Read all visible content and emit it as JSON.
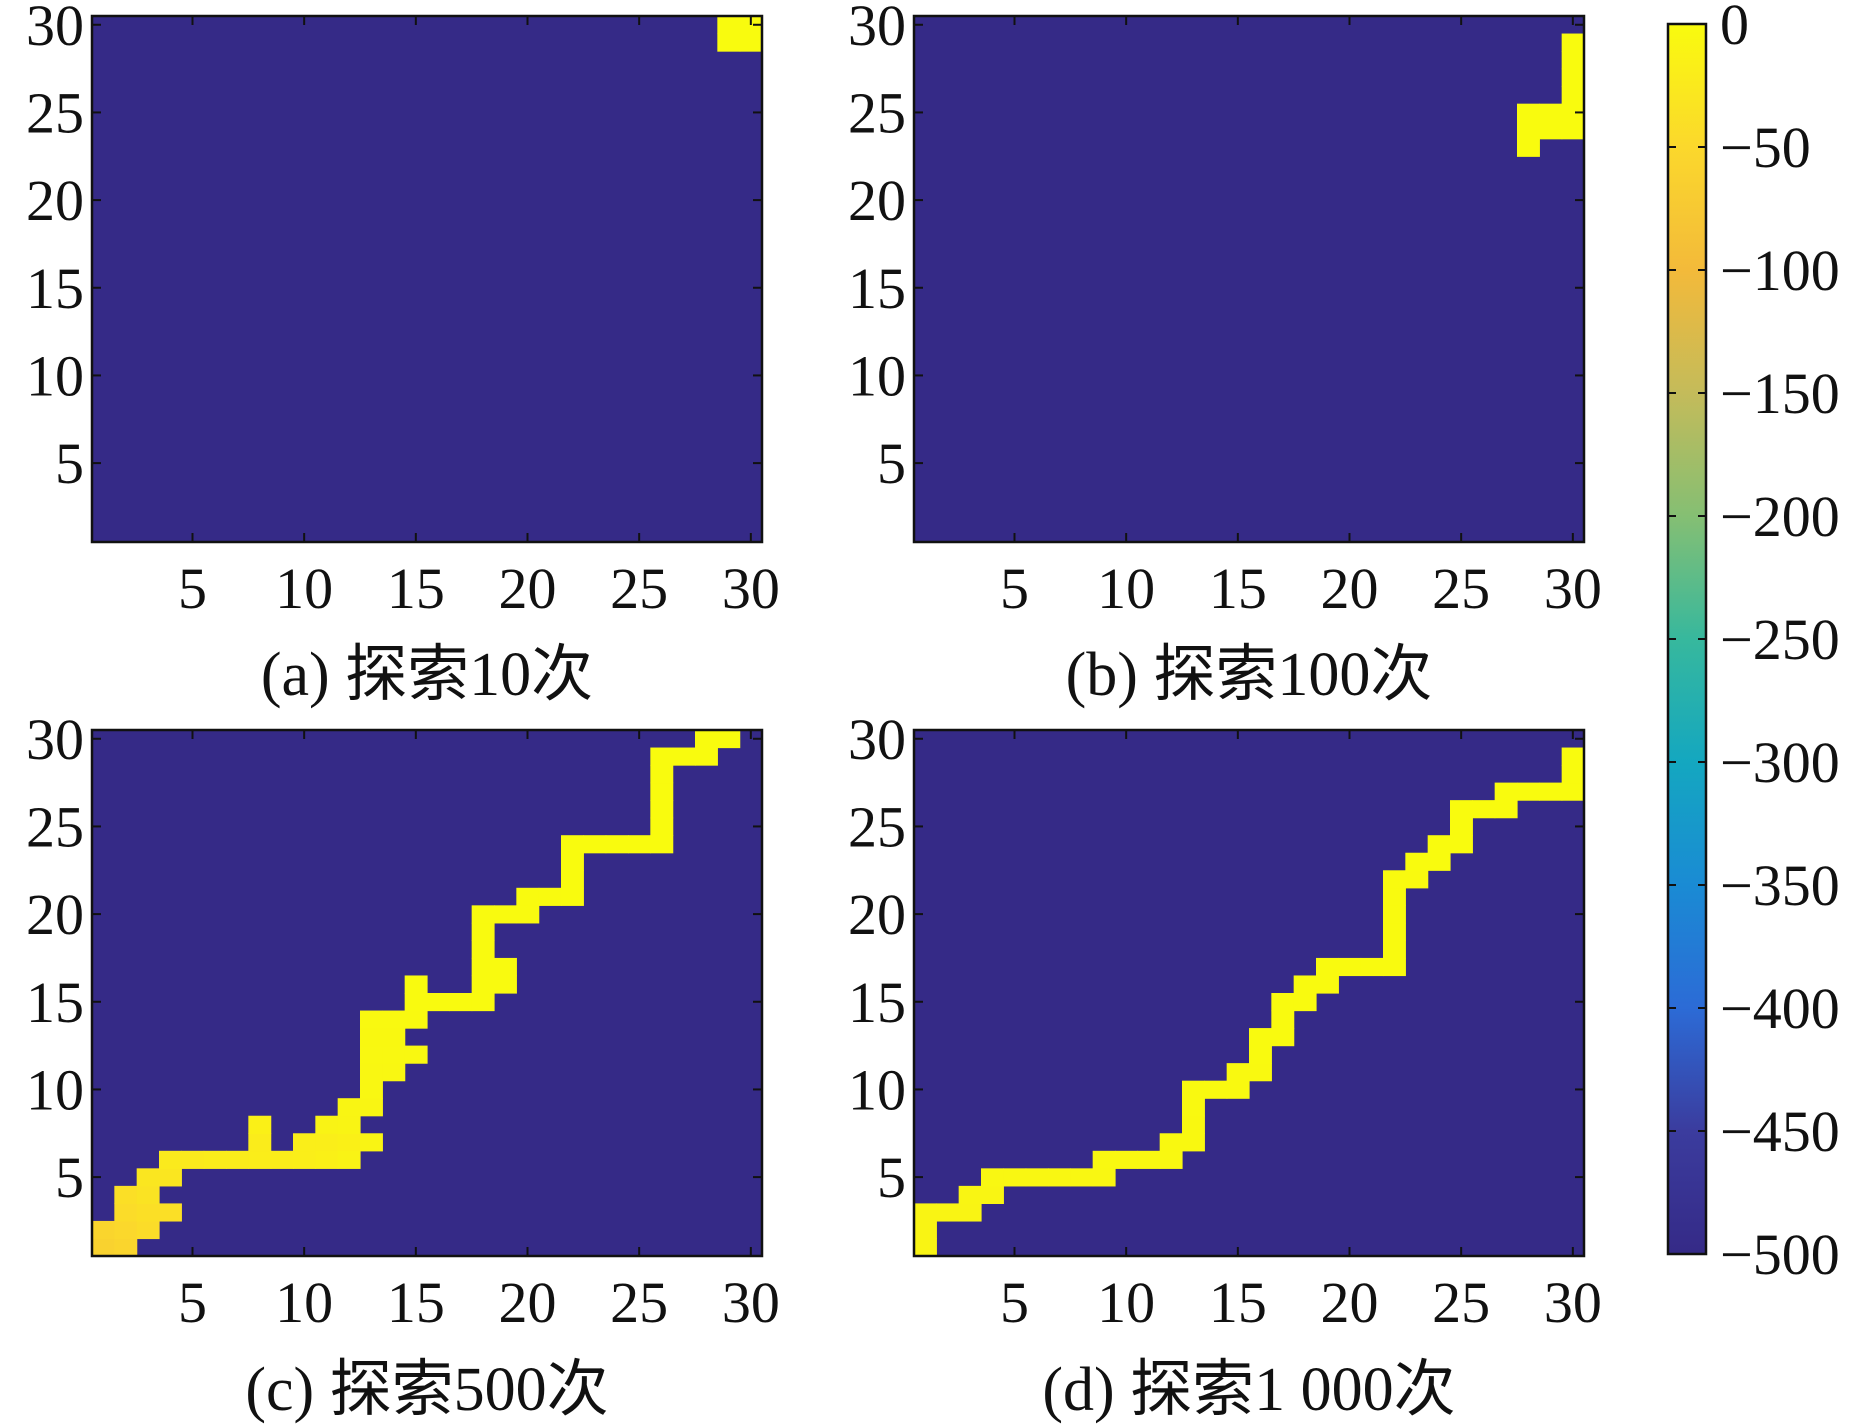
{
  "chart_data": [
    {
      "type": "heatmap",
      "caption": "(a) 探索10次",
      "xlim": [
        0.5,
        30.5
      ],
      "ylim": [
        0.5,
        30.5
      ],
      "x_ticks": [
        5,
        10,
        15,
        20,
        25,
        30
      ],
      "y_ticks": [
        5,
        10,
        15,
        20,
        25,
        30
      ],
      "background_value": -500,
      "cells": [
        {
          "x": 29,
          "y": 30,
          "v": 0
        },
        {
          "x": 30,
          "y": 30,
          "v": 0
        },
        {
          "x": 29,
          "y": 29,
          "v": 0
        },
        {
          "x": 30,
          "y": 29,
          "v": 0
        }
      ]
    },
    {
      "type": "heatmap",
      "caption": "(b) 探索100次",
      "xlim": [
        0.5,
        30.5
      ],
      "ylim": [
        0.5,
        30.5
      ],
      "x_ticks": [
        5,
        10,
        15,
        20,
        25,
        30
      ],
      "y_ticks": [
        5,
        10,
        15,
        20,
        25,
        30
      ],
      "background_value": -500,
      "cells": [
        {
          "x": 30,
          "y": 29,
          "v": 0
        },
        {
          "x": 30,
          "y": 28,
          "v": 0
        },
        {
          "x": 30,
          "y": 27,
          "v": 0
        },
        {
          "x": 30,
          "y": 26,
          "v": 0
        },
        {
          "x": 30,
          "y": 25,
          "v": 0
        },
        {
          "x": 30,
          "y": 24,
          "v": 0
        },
        {
          "x": 28,
          "y": 25,
          "v": 0
        },
        {
          "x": 29,
          "y": 25,
          "v": 0
        },
        {
          "x": 28,
          "y": 24,
          "v": 0
        },
        {
          "x": 29,
          "y": 24,
          "v": 0
        },
        {
          "x": 28,
          "y": 23,
          "v": 0
        }
      ]
    },
    {
      "type": "heatmap",
      "caption": "(c) 探索500次",
      "xlim": [
        0.5,
        30.5
      ],
      "ylim": [
        0.5,
        30.5
      ],
      "x_ticks": [
        5,
        10,
        15,
        20,
        25,
        30
      ],
      "y_ticks": [
        5,
        10,
        15,
        20,
        25,
        30
      ],
      "background_value": -500,
      "cells": [
        {
          "x": 1,
          "y": 1,
          "v": -60
        },
        {
          "x": 2,
          "y": 1,
          "v": -55
        },
        {
          "x": 1,
          "y": 2,
          "v": -55
        },
        {
          "x": 2,
          "y": 2,
          "v": -50
        },
        {
          "x": 3,
          "y": 2,
          "v": -45
        },
        {
          "x": 2,
          "y": 3,
          "v": -45
        },
        {
          "x": 3,
          "y": 3,
          "v": -40
        },
        {
          "x": 4,
          "y": 3,
          "v": -40
        },
        {
          "x": 2,
          "y": 4,
          "v": -40
        },
        {
          "x": 3,
          "y": 4,
          "v": -35
        },
        {
          "x": 3,
          "y": 5,
          "v": -30
        },
        {
          "x": 4,
          "y": 5,
          "v": -30
        },
        {
          "x": 4,
          "y": 6,
          "v": -25
        },
        {
          "x": 5,
          "y": 6,
          "v": -25
        },
        {
          "x": 6,
          "y": 6,
          "v": -22
        },
        {
          "x": 7,
          "y": 6,
          "v": -22
        },
        {
          "x": 8,
          "y": 6,
          "v": -20
        },
        {
          "x": 9,
          "y": 6,
          "v": -20
        },
        {
          "x": 10,
          "y": 6,
          "v": -18
        },
        {
          "x": 8,
          "y": 7,
          "v": -22
        },
        {
          "x": 8,
          "y": 8,
          "v": -15
        },
        {
          "x": 10,
          "y": 7,
          "v": -18
        },
        {
          "x": 11,
          "y": 7,
          "v": -18
        },
        {
          "x": 12,
          "y": 7,
          "v": -15
        },
        {
          "x": 11,
          "y": 6,
          "v": -15
        },
        {
          "x": 12,
          "y": 6,
          "v": -12
        },
        {
          "x": 13,
          "y": 7,
          "v": -10
        },
        {
          "x": 11,
          "y": 8,
          "v": -12
        },
        {
          "x": 12,
          "y": 8,
          "v": -10
        },
        {
          "x": 12,
          "y": 9,
          "v": -8
        },
        {
          "x": 13,
          "y": 9,
          "v": -8
        },
        {
          "x": 13,
          "y": 10,
          "v": -6
        },
        {
          "x": 13,
          "y": 11,
          "v": -6
        },
        {
          "x": 14,
          "y": 11,
          "v": -6
        },
        {
          "x": 13,
          "y": 12,
          "v": -5
        },
        {
          "x": 14,
          "y": 12,
          "v": -5
        },
        {
          "x": 15,
          "y": 12,
          "v": -5
        },
        {
          "x": 13,
          "y": 13,
          "v": -4
        },
        {
          "x": 14,
          "y": 13,
          "v": -4
        },
        {
          "x": 13,
          "y": 14,
          "v": -3
        },
        {
          "x": 14,
          "y": 14,
          "v": -3
        },
        {
          "x": 15,
          "y": 14,
          "v": -3
        },
        {
          "x": 15,
          "y": 15,
          "v": -2
        },
        {
          "x": 16,
          "y": 15,
          "v": -2
        },
        {
          "x": 17,
          "y": 15,
          "v": -2
        },
        {
          "x": 18,
          "y": 15,
          "v": -2
        },
        {
          "x": 15,
          "y": 16,
          "v": -2
        },
        {
          "x": 18,
          "y": 16,
          "v": -1
        },
        {
          "x": 19,
          "y": 16,
          "v": -1
        },
        {
          "x": 18,
          "y": 17,
          "v": -1
        },
        {
          "x": 19,
          "y": 17,
          "v": -1
        },
        {
          "x": 18,
          "y": 18,
          "v": -1
        },
        {
          "x": 18,
          "y": 19,
          "v": -1
        },
        {
          "x": 18,
          "y": 20,
          "v": -1
        },
        {
          "x": 19,
          "y": 20,
          "v": -1
        },
        {
          "x": 20,
          "y": 20,
          "v": -1
        },
        {
          "x": 20,
          "y": 21,
          "v": -1
        },
        {
          "x": 21,
          "y": 21,
          "v": -1
        },
        {
          "x": 22,
          "y": 21,
          "v": 0
        },
        {
          "x": 22,
          "y": 22,
          "v": 0
        },
        {
          "x": 22,
          "y": 23,
          "v": 0
        },
        {
          "x": 22,
          "y": 24,
          "v": 0
        },
        {
          "x": 23,
          "y": 24,
          "v": 0
        },
        {
          "x": 24,
          "y": 24,
          "v": 0
        },
        {
          "x": 25,
          "y": 24,
          "v": 0
        },
        {
          "x": 26,
          "y": 24,
          "v": 0
        },
        {
          "x": 26,
          "y": 25,
          "v": 0
        },
        {
          "x": 26,
          "y": 26,
          "v": 0
        },
        {
          "x": 26,
          "y": 27,
          "v": 0
        },
        {
          "x": 26,
          "y": 28,
          "v": 0
        },
        {
          "x": 26,
          "y": 29,
          "v": 0
        },
        {
          "x": 27,
          "y": 29,
          "v": 0
        },
        {
          "x": 28,
          "y": 29,
          "v": 0
        },
        {
          "x": 28,
          "y": 30,
          "v": 0
        },
        {
          "x": 29,
          "y": 30,
          "v": 0
        }
      ]
    },
    {
      "type": "heatmap",
      "caption": "(d) 探索1 000次",
      "xlim": [
        0.5,
        30.5
      ],
      "ylim": [
        0.5,
        30.5
      ],
      "x_ticks": [
        5,
        10,
        15,
        20,
        25,
        30
      ],
      "y_ticks": [
        5,
        10,
        15,
        20,
        25,
        30
      ],
      "background_value": -500,
      "cells": [
        {
          "x": 1,
          "y": 1,
          "v": -10
        },
        {
          "x": 1,
          "y": 2,
          "v": -10
        },
        {
          "x": 1,
          "y": 3,
          "v": -10
        },
        {
          "x": 2,
          "y": 3,
          "v": -10
        },
        {
          "x": 3,
          "y": 3,
          "v": -10
        },
        {
          "x": 3,
          "y": 4,
          "v": -8
        },
        {
          "x": 4,
          "y": 4,
          "v": -8
        },
        {
          "x": 4,
          "y": 5,
          "v": -6
        },
        {
          "x": 5,
          "y": 5,
          "v": -6
        },
        {
          "x": 6,
          "y": 5,
          "v": -6
        },
        {
          "x": 7,
          "y": 5,
          "v": -6
        },
        {
          "x": 8,
          "y": 5,
          "v": -6
        },
        {
          "x": 9,
          "y": 5,
          "v": -6
        },
        {
          "x": 9,
          "y": 6,
          "v": -5
        },
        {
          "x": 10,
          "y": 6,
          "v": -5
        },
        {
          "x": 11,
          "y": 6,
          "v": -5
        },
        {
          "x": 12,
          "y": 6,
          "v": -5
        },
        {
          "x": 12,
          "y": 7,
          "v": -4
        },
        {
          "x": 13,
          "y": 7,
          "v": -4
        },
        {
          "x": 13,
          "y": 8,
          "v": -4
        },
        {
          "x": 13,
          "y": 9,
          "v": -3
        },
        {
          "x": 13,
          "y": 10,
          "v": -3
        },
        {
          "x": 14,
          "y": 10,
          "v": -3
        },
        {
          "x": 15,
          "y": 10,
          "v": -3
        },
        {
          "x": 15,
          "y": 11,
          "v": -3
        },
        {
          "x": 16,
          "y": 11,
          "v": -3
        },
        {
          "x": 16,
          "y": 12,
          "v": -2
        },
        {
          "x": 16,
          "y": 13,
          "v": -2
        },
        {
          "x": 17,
          "y": 13,
          "v": -2
        },
        {
          "x": 17,
          "y": 14,
          "v": -2
        },
        {
          "x": 17,
          "y": 15,
          "v": -2
        },
        {
          "x": 18,
          "y": 15,
          "v": -2
        },
        {
          "x": 18,
          "y": 16,
          "v": -2
        },
        {
          "x": 19,
          "y": 16,
          "v": -2
        },
        {
          "x": 19,
          "y": 17,
          "v": -1
        },
        {
          "x": 20,
          "y": 17,
          "v": -1
        },
        {
          "x": 21,
          "y": 17,
          "v": -1
        },
        {
          "x": 22,
          "y": 17,
          "v": -1
        },
        {
          "x": 22,
          "y": 18,
          "v": -1
        },
        {
          "x": 22,
          "y": 19,
          "v": -1
        },
        {
          "x": 22,
          "y": 20,
          "v": -1
        },
        {
          "x": 22,
          "y": 21,
          "v": -1
        },
        {
          "x": 22,
          "y": 22,
          "v": -1
        },
        {
          "x": 23,
          "y": 22,
          "v": -1
        },
        {
          "x": 23,
          "y": 23,
          "v": 0
        },
        {
          "x": 24,
          "y": 23,
          "v": 0
        },
        {
          "x": 24,
          "y": 24,
          "v": 0
        },
        {
          "x": 25,
          "y": 24,
          "v": 0
        },
        {
          "x": 25,
          "y": 25,
          "v": 0
        },
        {
          "x": 25,
          "y": 26,
          "v": 0
        },
        {
          "x": 26,
          "y": 26,
          "v": 0
        },
        {
          "x": 27,
          "y": 26,
          "v": 0
        },
        {
          "x": 27,
          "y": 27,
          "v": 0
        },
        {
          "x": 28,
          "y": 27,
          "v": 0
        },
        {
          "x": 29,
          "y": 27,
          "v": 0
        },
        {
          "x": 30,
          "y": 27,
          "v": 0
        },
        {
          "x": 30,
          "y": 28,
          "v": 0
        },
        {
          "x": 30,
          "y": 29,
          "v": 0
        }
      ]
    }
  ],
  "colorbar": {
    "min": -500,
    "max": 0,
    "tick_values": [
      0,
      -50,
      -100,
      -150,
      -200,
      -250,
      -300,
      -350,
      -400,
      -450,
      -500
    ],
    "tick_labels": [
      "0",
      "−50",
      "−100",
      "−150",
      "−200",
      "−250",
      "−300",
      "−350",
      "−400",
      "−450",
      "−500"
    ],
    "colormap": "parula",
    "stops": [
      "#352a87",
      "#3b3c9e",
      "#2c6bd6",
      "#1a8bd4",
      "#14a7c0",
      "#37b89d",
      "#85bf73",
      "#c4bb5a",
      "#f3ba3a",
      "#fbd82c",
      "#f9fb0e"
    ]
  }
}
